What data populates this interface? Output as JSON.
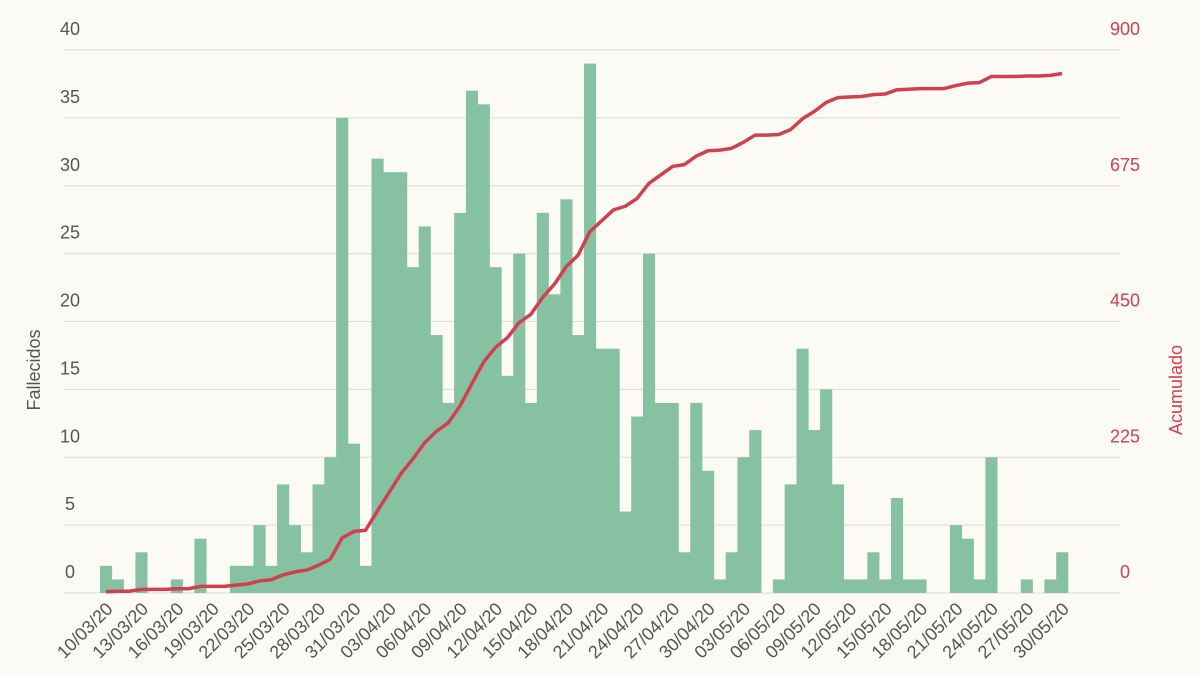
{
  "chart_data": {
    "type": "bar_line",
    "categories": [
      "10/03/20",
      null,
      null,
      "13/03/20",
      null,
      null,
      "16/03/20",
      null,
      null,
      "19/03/20",
      null,
      null,
      "22/03/20",
      null,
      null,
      "25/03/20",
      null,
      null,
      "28/03/20",
      null,
      null,
      "31/03/20",
      null,
      null,
      "03/04/20",
      null,
      null,
      "06/04/20",
      null,
      null,
      "09/04/20",
      null,
      null,
      "12/04/20",
      null,
      null,
      "15/04/20",
      null,
      null,
      "18/04/20",
      null,
      null,
      "21/04/20",
      null,
      null,
      "24/04/20",
      null,
      null,
      "27/04/20",
      null,
      null,
      "30/04/20",
      null,
      null,
      "03/05/20",
      null,
      null,
      "06/05/20",
      null,
      null,
      "09/05/20",
      null,
      null,
      "12/05/20",
      null,
      null,
      "15/05/20",
      null,
      null,
      "18/05/20",
      null,
      null,
      "21/05/20",
      null,
      null,
      "24/05/20",
      null,
      null,
      "27/05/20",
      null,
      null,
      "30/05/20"
    ],
    "series": [
      {
        "name": "Fallecidos",
        "type": "bar",
        "color": "#86c1a2",
        "values": [
          2,
          1,
          0,
          3,
          0,
          0,
          1,
          0,
          4,
          0,
          0,
          2,
          2,
          5,
          2,
          8,
          5,
          3,
          8,
          10,
          35,
          11,
          2,
          32,
          31,
          31,
          24,
          27,
          19,
          14,
          28,
          37,
          36,
          24,
          16,
          25,
          14,
          28,
          22,
          29,
          19,
          39,
          18,
          18,
          6,
          13,
          25,
          14,
          14,
          3,
          14,
          9,
          1,
          3,
          10,
          12,
          0,
          1,
          8,
          18,
          12,
          15,
          8,
          1,
          1,
          3,
          1,
          7,
          1,
          1,
          0,
          0,
          5,
          4,
          1,
          10,
          0,
          0,
          1,
          0,
          1,
          3
        ]
      },
      {
        "name": "Acumulado",
        "type": "line",
        "axis": "y2",
        "color": "#d0404f",
        "values": [
          2,
          3,
          3,
          6,
          6,
          6,
          7,
          7,
          11,
          11,
          11,
          13,
          15,
          20,
          22,
          30,
          35,
          38,
          46,
          56,
          91,
          102,
          104,
          136,
          167,
          198,
          222,
          249,
          268,
          282,
          310,
          347,
          383,
          407,
          423,
          448,
          462,
          490,
          512,
          541,
          560,
          599,
          617,
          635,
          641,
          654,
          679,
          693,
          707,
          710,
          724,
          733,
          734,
          737,
          747,
          759,
          759,
          760,
          768,
          786,
          798,
          813,
          821,
          822,
          823,
          826,
          827,
          834,
          835,
          836,
          836,
          836,
          841,
          845,
          846,
          856,
          856,
          856,
          857,
          857,
          858,
          861
        ]
      }
    ],
    "ylabel": "Fallecidos",
    "y2label": "Acumulado",
    "ylim": [
      0,
      40
    ],
    "yticks": [
      0,
      5,
      10,
      15,
      20,
      25,
      30,
      35,
      40
    ],
    "y2lim": [
      0,
      900
    ],
    "y2ticks": [
      0,
      225,
      450,
      675,
      900
    ],
    "grid": true
  }
}
